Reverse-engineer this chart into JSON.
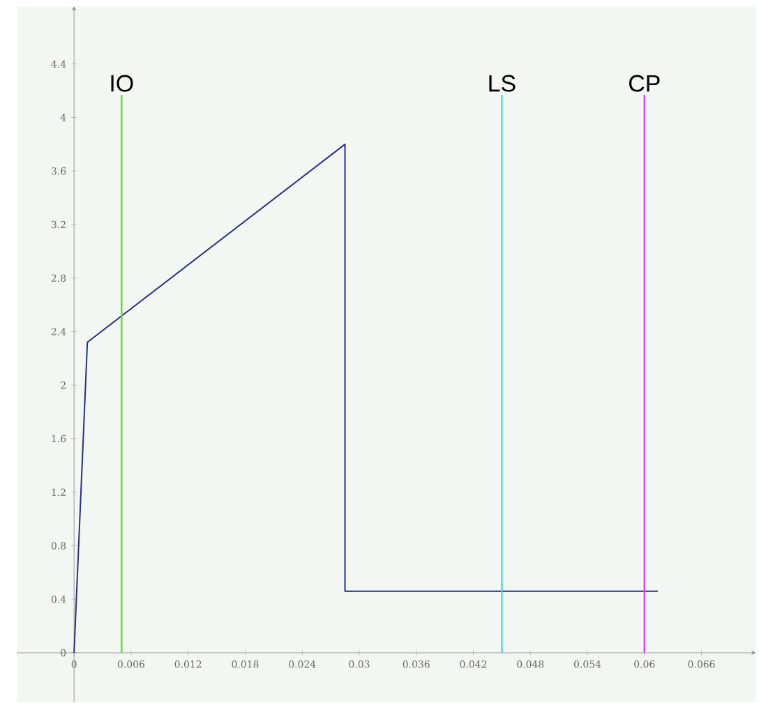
{
  "chart_data": {
    "type": "line",
    "x": [
      0,
      0.0014,
      0.0285,
      0.0285,
      0.0614
    ],
    "series": [
      {
        "color": "#2b2f7a",
        "values": [
          0,
          2.32,
          3.8,
          0.46,
          0.46
        ]
      }
    ],
    "xlim": [
      -0.006,
      0.0717
    ],
    "ylim": [
      -0.37,
      4.83
    ],
    "xticks": [
      0,
      0.006,
      0.012,
      0.018,
      0.024,
      0.03,
      0.036,
      0.042,
      0.048,
      0.054,
      0.06,
      0.066
    ],
    "yticks": [
      0,
      0.4,
      0.8,
      1.2,
      1.6,
      2,
      2.4,
      2.8,
      3.2,
      3.6,
      4,
      4.4
    ],
    "ref_lines": [
      {
        "axis": "x",
        "value": 0.005,
        "label": "IO",
        "color": "#55dd33"
      },
      {
        "axis": "x",
        "value": 0.045,
        "label": "LS",
        "color": "#33e0e0"
      },
      {
        "axis": "x",
        "value": 0.06,
        "label": "CP",
        "color": "#e040e0"
      }
    ],
    "grid": false,
    "marker": "none",
    "line_style": "solid"
  }
}
